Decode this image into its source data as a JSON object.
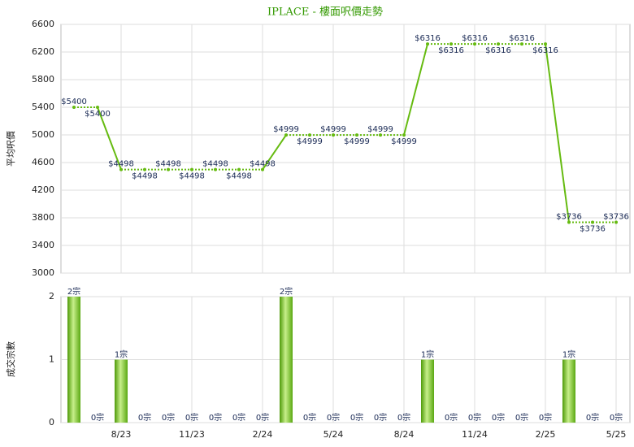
{
  "chart_data": [
    {
      "type": "line",
      "title": "IPLACE - 樓面呎價走勢",
      "y_label": "平均呎價",
      "values": [
        5400,
        5400,
        4498,
        4498,
        4498,
        4498,
        4498,
        4498,
        4498,
        4999,
        4999,
        4999,
        4999,
        4999,
        4999,
        6316,
        6316,
        6316,
        6316,
        6316,
        6316,
        3736,
        3736,
        3736
      ],
      "value_labels": [
        "$5400",
        "$5400",
        "$4498",
        "$4498",
        "$4498",
        "$4498",
        "$4498",
        "$4498",
        "$4498",
        "$4999",
        "$4999",
        "$4999",
        "$4999",
        "$4999",
        "$4999",
        "$6316",
        "$6316",
        "$6316",
        "$6316",
        "$6316",
        "$6316",
        "$3736",
        "$3736",
        "$3736"
      ],
      "color": "#66bb11",
      "ylim": [
        3000,
        6600
      ],
      "yticks": [
        3000,
        3400,
        3800,
        4200,
        4600,
        5000,
        5400,
        5800,
        6200,
        6600
      ],
      "grid": true
    },
    {
      "type": "bar",
      "y_label": "成交宗數",
      "categories": [
        null,
        null,
        "8/23",
        null,
        null,
        "11/23",
        null,
        null,
        "2/24",
        null,
        null,
        "5/24",
        null,
        null,
        "8/24",
        null,
        null,
        "11/24",
        null,
        null,
        "2/25",
        null,
        null,
        "5/25"
      ],
      "values": [
        2,
        0,
        1,
        0,
        0,
        0,
        0,
        0,
        0,
        2,
        0,
        0,
        0,
        0,
        0,
        1,
        0,
        0,
        0,
        0,
        0,
        1,
        0,
        0
      ],
      "value_labels": [
        "2宗",
        "0宗",
        "1宗",
        "0宗",
        "0宗",
        "0宗",
        "0宗",
        "0宗",
        "0宗",
        "2宗",
        "0宗",
        "0宗",
        "0宗",
        "0宗",
        "0宗",
        "1宗",
        "0宗",
        "0宗",
        "0宗",
        "0宗",
        "0宗",
        "1宗",
        "0宗",
        "0宗"
      ],
      "color": "#66bb11",
      "ylim": [
        0,
        2
      ],
      "yticks": [
        0,
        1,
        2
      ],
      "grid": true
    }
  ]
}
